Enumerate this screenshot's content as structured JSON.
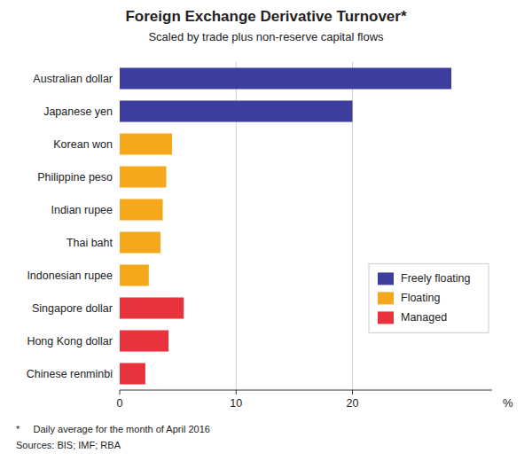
{
  "chart_data": {
    "type": "bar",
    "orientation": "horizontal",
    "title": "Foreign Exchange Derivative Turnover*",
    "subtitle": "Scaled by trade plus non-reserve capital flows",
    "categories": [
      "Australian dollar",
      "Japanese yen",
      "Korean won",
      "Philippine peso",
      "Indian rupee",
      "Thai baht",
      "Indonesian rupee",
      "Singapore dollar",
      "Hong Kong dollar",
      "Chinese renminbi"
    ],
    "values": [
      28.5,
      20.0,
      4.5,
      4.0,
      3.7,
      3.5,
      2.5,
      5.5,
      4.2,
      2.2
    ],
    "colors": [
      "#3d3d9e",
      "#3d3d9e",
      "#f5a81c",
      "#f5a81c",
      "#f5a81c",
      "#f5a81c",
      "#f5a81c",
      "#e8323c",
      "#e8323c",
      "#e8323c"
    ],
    "xlim": [
      0,
      32
    ],
    "xticks": [
      0,
      10,
      20
    ],
    "xlabel": "%",
    "grid": true,
    "legend": "right",
    "legend_labels": [
      "Freely floating",
      "Floating",
      "Managed"
    ],
    "legend_colors": [
      "#3d3d9e",
      "#f5a81c",
      "#e8323c"
    ],
    "footnotes": [
      "*     Daily average for the month of April 2016",
      "Sources: BIS; IMF; RBA"
    ]
  }
}
